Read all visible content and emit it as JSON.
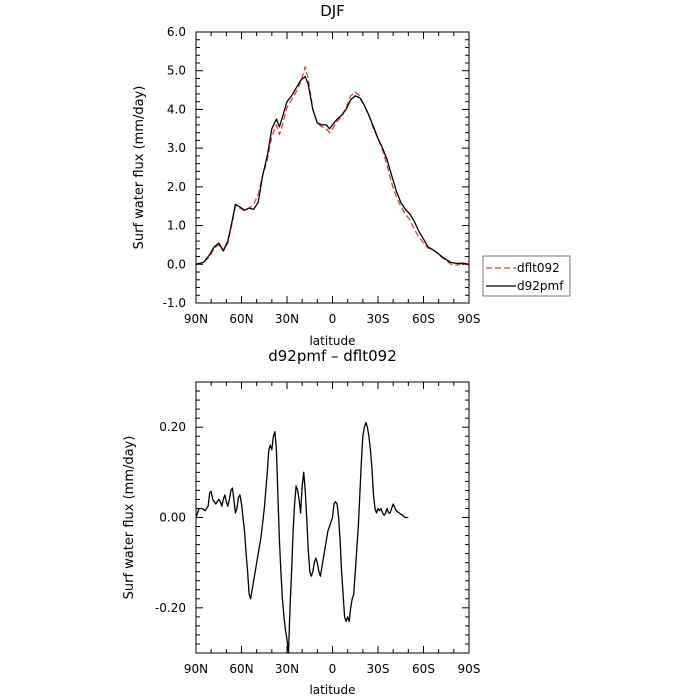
{
  "chart_data": [
    {
      "type": "line",
      "title": "DJF",
      "xlabel": "latitude",
      "ylabel": "Surf water flux (mm/day)",
      "xlim": [
        90,
        -90
      ],
      "ylim": [
        -1.0,
        6.0
      ],
      "x_ticks": [
        90,
        60,
        30,
        0,
        -30,
        -60,
        -90
      ],
      "x_tick_labels": [
        "90N",
        "60N",
        "30N",
        "0",
        "30S",
        "60S",
        "90S"
      ],
      "y_ticks": [
        -1.0,
        0.0,
        1.0,
        2.0,
        3.0,
        4.0,
        5.0,
        6.0
      ],
      "y_tick_labels": [
        "-1.0",
        "0.0",
        "1.0",
        "2.0",
        "3.0",
        "4.0",
        "5.0",
        "6.0"
      ],
      "legend_position": "right",
      "series": [
        {
          "name": "dflt092",
          "color": "#e8393a",
          "dash": "dashed",
          "points": [
            [
              90,
              0.0
            ],
            [
              85,
              0.05
            ],
            [
              81,
              0.2
            ],
            [
              78,
              0.42
            ],
            [
              75,
              0.5
            ],
            [
              72,
              0.34
            ],
            [
              69,
              0.55
            ],
            [
              66,
              1.1
            ],
            [
              64,
              1.5
            ],
            [
              61,
              1.45
            ],
            [
              58,
              1.38
            ],
            [
              55,
              1.45
            ],
            [
              52,
              1.55
            ],
            [
              49,
              1.8
            ],
            [
              46,
              2.3
            ],
            [
              43,
              2.7
            ],
            [
              40,
              3.3
            ],
            [
              37,
              3.6
            ],
            [
              35,
              3.35
            ],
            [
              33,
              3.6
            ],
            [
              30,
              4.05
            ],
            [
              27,
              4.25
            ],
            [
              24,
              4.45
            ],
            [
              21,
              4.7
            ],
            [
              18,
              5.1
            ],
            [
              16,
              4.8
            ],
            [
              13,
              4.0
            ],
            [
              10,
              3.65
            ],
            [
              7,
              3.55
            ],
            [
              4,
              3.5
            ],
            [
              2,
              3.4
            ],
            [
              0,
              3.5
            ],
            [
              -3,
              3.7
            ],
            [
              -6,
              3.8
            ],
            [
              -9,
              4.05
            ],
            [
              -12,
              4.35
            ],
            [
              -15,
              4.45
            ],
            [
              -18,
              4.35
            ],
            [
              -21,
              4.1
            ],
            [
              -24,
              3.85
            ],
            [
              -27,
              3.5
            ],
            [
              -30,
              3.25
            ],
            [
              -33,
              2.95
            ],
            [
              -36,
              2.55
            ],
            [
              -39,
              2.1
            ],
            [
              -42,
              1.75
            ],
            [
              -45,
              1.5
            ],
            [
              -48,
              1.3
            ],
            [
              -51,
              1.15
            ],
            [
              -54,
              0.9
            ],
            [
              -57,
              0.7
            ],
            [
              -60,
              0.55
            ],
            [
              -63,
              0.42
            ],
            [
              -66,
              0.38
            ],
            [
              -69,
              0.3
            ],
            [
              -72,
              0.18
            ],
            [
              -75,
              0.1
            ],
            [
              -78,
              0.0
            ],
            [
              -82,
              -0.02
            ],
            [
              -86,
              0.02
            ],
            [
              -90,
              -0.02
            ]
          ]
        },
        {
          "name": "d92pmf",
          "color": "#000000",
          "dash": "solid",
          "points": [
            [
              90,
              0.0
            ],
            [
              85,
              0.05
            ],
            [
              81,
              0.25
            ],
            [
              78,
              0.45
            ],
            [
              75,
              0.55
            ],
            [
              72,
              0.35
            ],
            [
              69,
              0.6
            ],
            [
              66,
              1.15
            ],
            [
              64,
              1.55
            ],
            [
              61,
              1.48
            ],
            [
              58,
              1.4
            ],
            [
              55,
              1.45
            ],
            [
              52,
              1.42
            ],
            [
              49,
              1.6
            ],
            [
              46,
              2.3
            ],
            [
              43,
              2.8
            ],
            [
              40,
              3.5
            ],
            [
              37,
              3.75
            ],
            [
              35,
              3.55
            ],
            [
              33,
              3.8
            ],
            [
              30,
              4.2
            ],
            [
              27,
              4.35
            ],
            [
              24,
              4.55
            ],
            [
              21,
              4.75
            ],
            [
              18,
              4.85
            ],
            [
              16,
              4.65
            ],
            [
              13,
              4.0
            ],
            [
              10,
              3.65
            ],
            [
              7,
              3.6
            ],
            [
              4,
              3.6
            ],
            [
              2,
              3.5
            ],
            [
              0,
              3.6
            ],
            [
              -3,
              3.75
            ],
            [
              -6,
              3.85
            ],
            [
              -9,
              4.0
            ],
            [
              -12,
              4.25
            ],
            [
              -15,
              4.35
            ],
            [
              -18,
              4.3
            ],
            [
              -21,
              4.1
            ],
            [
              -24,
              3.85
            ],
            [
              -27,
              3.55
            ],
            [
              -30,
              3.25
            ],
            [
              -33,
              3.0
            ],
            [
              -36,
              2.7
            ],
            [
              -39,
              2.3
            ],
            [
              -42,
              1.9
            ],
            [
              -45,
              1.6
            ],
            [
              -48,
              1.42
            ],
            [
              -51,
              1.3
            ],
            [
              -54,
              1.1
            ],
            [
              -57,
              0.85
            ],
            [
              -60,
              0.65
            ],
            [
              -63,
              0.45
            ],
            [
              -66,
              0.38
            ],
            [
              -69,
              0.3
            ],
            [
              -72,
              0.2
            ],
            [
              -75,
              0.12
            ],
            [
              -78,
              0.05
            ],
            [
              -82,
              0.02
            ],
            [
              -86,
              0.03
            ],
            [
              -90,
              0.0
            ]
          ]
        }
      ]
    },
    {
      "type": "line",
      "title": "d92pmf – dflt092",
      "xlabel": "latitude",
      "ylabel": "Surf water flux (mm/day)",
      "xlim": [
        90,
        -90
      ],
      "ylim": [
        -0.3,
        0.3
      ],
      "x_ticks": [
        90,
        60,
        30,
        0,
        -30,
        -60,
        -90
      ],
      "x_tick_labels": [
        "90N",
        "60N",
        "30N",
        "0",
        "30S",
        "60S",
        "90S"
      ],
      "y_ticks": [
        -0.2,
        0.0,
        0.2
      ],
      "y_tick_labels": [
        "-0.20",
        "0.00",
        "0.20"
      ],
      "series": [
        {
          "color": "#000000",
          "dash": "solid",
          "points": [
            [
              90,
              0.0
            ],
            [
              88,
              0.02
            ],
            [
              86,
              0.02
            ],
            [
              84,
              0.015
            ],
            [
              82,
              0.025
            ],
            [
              81,
              0.055
            ],
            [
              80,
              0.058
            ],
            [
              79,
              0.04
            ],
            [
              77,
              0.03
            ],
            [
              75,
              0.04
            ],
            [
              74,
              0.035
            ],
            [
              73,
              0.025
            ],
            [
              72,
              0.04
            ],
            [
              71,
              0.05
            ],
            [
              70,
              0.035
            ],
            [
              69,
              0.025
            ],
            [
              68,
              0.04
            ],
            [
              67,
              0.06
            ],
            [
              66,
              0.065
            ],
            [
              65,
              0.04
            ],
            [
              64,
              0.01
            ],
            [
              63,
              0.02
            ],
            [
              62,
              0.045
            ],
            [
              61,
              0.05
            ],
            [
              60,
              0.03
            ],
            [
              59,
              0.0
            ],
            [
              58,
              -0.03
            ],
            [
              57,
              -0.08
            ],
            [
              56,
              -0.12
            ],
            [
              55,
              -0.17
            ],
            [
              54,
              -0.18
            ],
            [
              53,
              -0.16
            ],
            [
              51,
              -0.12
            ],
            [
              49,
              -0.08
            ],
            [
              47,
              -0.04
            ],
            [
              45,
              0.02
            ],
            [
              43,
              0.1
            ],
            [
              42,
              0.15
            ],
            [
              41,
              0.16
            ],
            [
              40,
              0.15
            ],
            [
              39,
              0.18
            ],
            [
              38,
              0.19
            ],
            [
              37,
              0.15
            ],
            [
              36,
              0.05
            ],
            [
              35,
              -0.05
            ],
            [
              34,
              -0.12
            ],
            [
              33,
              -0.18
            ],
            [
              32,
              -0.22
            ],
            [
              31,
              -0.25
            ],
            [
              30,
              -0.27
            ],
            [
              29,
              -0.3
            ],
            [
              28,
              -0.2
            ],
            [
              27,
              -0.12
            ],
            [
              26,
              -0.03
            ],
            [
              25,
              0.03
            ],
            [
              24,
              0.07
            ],
            [
              23,
              0.06
            ],
            [
              22,
              0.04
            ],
            [
              21,
              0.01
            ],
            [
              20,
              0.07
            ],
            [
              19,
              0.1
            ],
            [
              18,
              0.06
            ],
            [
              17,
              0.0
            ],
            [
              16,
              -0.07
            ],
            [
              15,
              -0.12
            ],
            [
              14,
              -0.13
            ],
            [
              13,
              -0.12
            ],
            [
              12,
              -0.1
            ],
            [
              11,
              -0.09
            ],
            [
              10,
              -0.1
            ],
            [
              9,
              -0.12
            ],
            [
              8,
              -0.13
            ],
            [
              7,
              -0.11
            ],
            [
              5,
              -0.07
            ],
            [
              3,
              -0.03
            ],
            [
              1,
              -0.01
            ],
            [
              0,
              0.0
            ],
            [
              -1,
              0.03
            ],
            [
              -2,
              0.035
            ],
            [
              -3,
              0.03
            ],
            [
              -4,
              0.0
            ],
            [
              -5,
              -0.05
            ],
            [
              -6,
              -0.12
            ],
            [
              -7,
              -0.17
            ],
            [
              -8,
              -0.22
            ],
            [
              -9,
              -0.23
            ],
            [
              -10,
              -0.22
            ],
            [
              -11,
              -0.23
            ],
            [
              -12,
              -0.2
            ],
            [
              -13,
              -0.18
            ],
            [
              -14,
              -0.17
            ],
            [
              -15,
              -0.12
            ],
            [
              -16,
              -0.07
            ],
            [
              -17,
              -0.02
            ],
            [
              -18,
              0.05
            ],
            [
              -19,
              0.12
            ],
            [
              -20,
              0.18
            ],
            [
              -21,
              0.2
            ],
            [
              -22,
              0.21
            ],
            [
              -23,
              0.2
            ],
            [
              -24,
              0.18
            ],
            [
              -25,
              0.15
            ],
            [
              -26,
              0.11
            ],
            [
              -27,
              0.05
            ],
            [
              -28,
              0.02
            ],
            [
              -29,
              0.01
            ],
            [
              -30,
              0.02
            ],
            [
              -31,
              0.015
            ],
            [
              -32,
              0.02
            ],
            [
              -33,
              0.01
            ],
            [
              -34,
              0.005
            ],
            [
              -35,
              0.01
            ],
            [
              -36,
              0.02
            ],
            [
              -37,
              0.01
            ],
            [
              -38,
              0.01
            ],
            [
              -39,
              0.02
            ],
            [
              -40,
              0.03
            ],
            [
              -42,
              0.015
            ],
            [
              -44,
              0.01
            ],
            [
              -46,
              0.005
            ],
            [
              -48,
              0.0
            ],
            [
              -50,
              0.0
            ]
          ]
        }
      ]
    }
  ]
}
